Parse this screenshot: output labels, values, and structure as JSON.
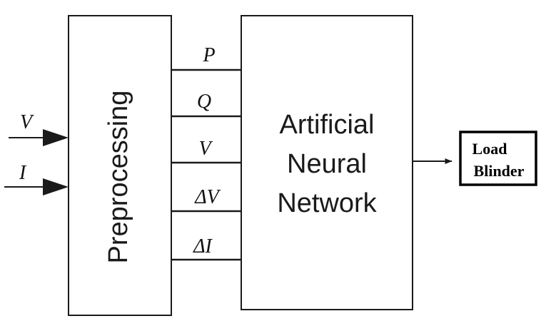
{
  "inputs": {
    "v_label": "V",
    "i_label": "I"
  },
  "preprocessing_block": {
    "label": "Preprocessing"
  },
  "signals": [
    {
      "label": "P"
    },
    {
      "label": "Q"
    },
    {
      "label": "V"
    },
    {
      "label": "ΔV"
    },
    {
      "label": "ΔI"
    }
  ],
  "ann_block": {
    "line1": "Artificial",
    "line2": "Neural",
    "line3": "Network"
  },
  "output_block": {
    "line1": "Load",
    "line2": "Blinder"
  },
  "colors": {
    "stroke": "#1a1a1a",
    "background": "#ffffff"
  }
}
